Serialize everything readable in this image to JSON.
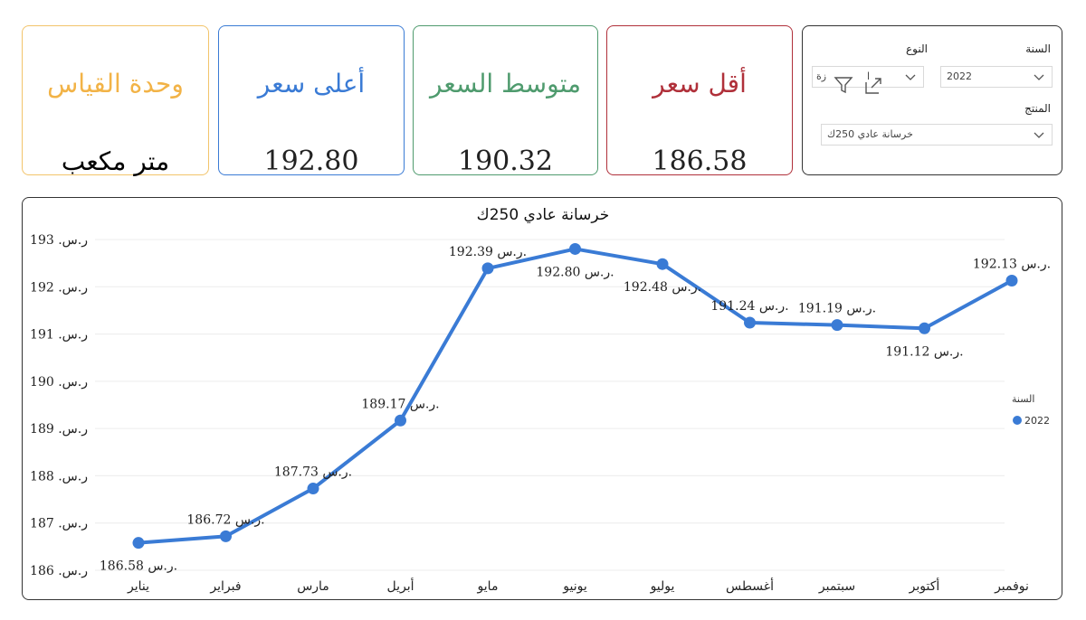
{
  "cards": {
    "unit": {
      "title": "وحدة القياس",
      "value": "متر مكعب",
      "color": "#f2b347"
    },
    "max": {
      "title": "أعلى سعر",
      "value": "192.80",
      "color": "#3a7bd5"
    },
    "avg": {
      "title": "متوسط السعر",
      "value": "190.32",
      "color": "#4f9b6e"
    },
    "min": {
      "title": "أقل سعر",
      "value": "186.58",
      "color": "#b0303a"
    }
  },
  "filters": {
    "year_label": "السنة",
    "year_value": "2022",
    "type_label": "النوع",
    "type_value_partial": "ا",
    "type_value_partial2": "زة",
    "product_label": "المنتج",
    "product_value": "خرسانة عادي 250ك"
  },
  "chart_data": {
    "type": "line",
    "title": "خرسانة عادي 250ك",
    "categories": [
      "يناير",
      "فبراير",
      "مارس",
      "أبريل",
      "مايو",
      "يونيو",
      "يوليو",
      "أغسطس",
      "سبتمبر",
      "أكتوبر",
      "نوفمبر"
    ],
    "series": [
      {
        "name": "2022",
        "values": [
          186.58,
          186.72,
          187.73,
          189.17,
          192.39,
          192.8,
          192.48,
          191.24,
          191.19,
          191.12,
          192.13
        ],
        "color": "#3a7bd5"
      }
    ],
    "ylim": [
      186,
      193
    ],
    "yticks": [
      186,
      187,
      188,
      189,
      190,
      191,
      192,
      193
    ],
    "currency": "ر.س.",
    "legend_title": "السنة",
    "legend_position": "right",
    "grid": true
  }
}
